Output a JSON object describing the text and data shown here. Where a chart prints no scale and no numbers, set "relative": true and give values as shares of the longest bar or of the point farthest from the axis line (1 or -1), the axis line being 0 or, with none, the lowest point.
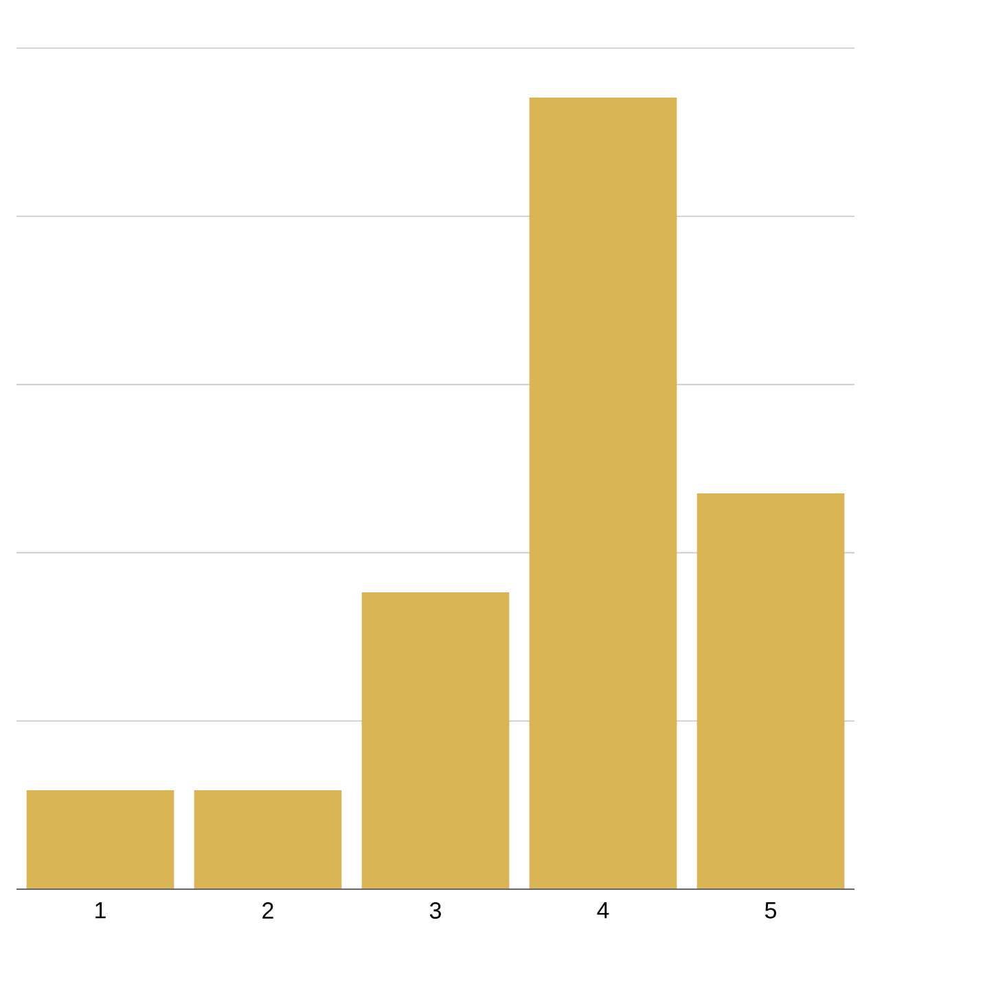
{
  "chart_data": {
    "type": "bar",
    "relative": true,
    "categories": [
      "1",
      "2",
      "3",
      "4",
      "5"
    ],
    "values": [
      0.125,
      0.125,
      0.375,
      1,
      0.5
    ],
    "color": "#dab556",
    "grid": "y"
  }
}
